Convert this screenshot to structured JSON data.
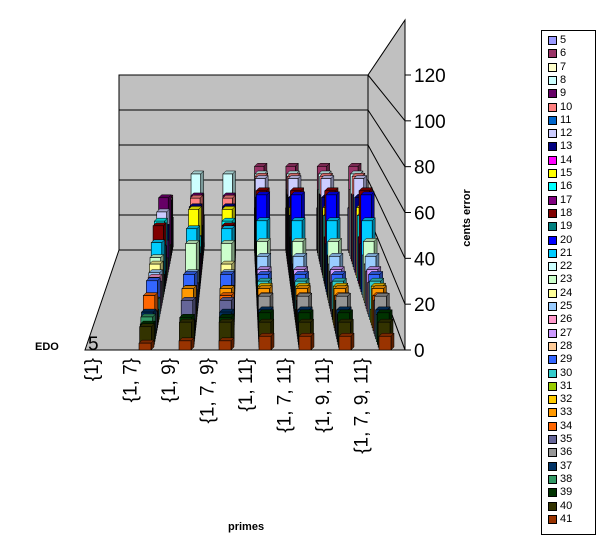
{
  "chart_data": {
    "type": "bar",
    "variant": "3d-column",
    "xlabel": "primes",
    "ylabel": "cents error",
    "depth_label": "EDO",
    "depth_tick": "5",
    "ylim": [
      0,
      120
    ],
    "yticks": [
      "0",
      "20",
      "40",
      "60",
      "80",
      "100",
      "120"
    ],
    "grid": "horizontal",
    "legend_position": "right",
    "categories": [
      "{1}",
      "{1, 7}",
      "{1, 9}",
      "{1, 7, 9}",
      "{1, 11}",
      "{1, 7, 11}",
      "{1, 9, 11}",
      "{1, 7, 9, 11}"
    ],
    "series": [
      {
        "name": "5",
        "color": "#9999ff",
        "values": [
          0,
          17,
          18,
          18,
          24,
          24,
          24,
          24
        ]
      },
      {
        "name": "6",
        "color": "#993366",
        "values": [
          0,
          31,
          4,
          31,
          49,
          49,
          49,
          49
        ]
      },
      {
        "name": "7",
        "color": "#ffffcc",
        "values": [
          0,
          31,
          33,
          33,
          37,
          37,
          37,
          37
        ]
      },
      {
        "name": "8",
        "color": "#ccffff",
        "values": [
          0,
          31,
          47,
          47,
          47,
          47,
          47,
          47
        ]
      },
      {
        "name": "9",
        "color": "#660066",
        "values": [
          0,
          35,
          36,
          36,
          37,
          37,
          37,
          37
        ]
      },
      {
        "name": "10",
        "color": "#ff8080",
        "values": [
          0,
          9,
          36,
          36,
          48,
          48,
          48,
          48
        ]
      },
      {
        "name": "11",
        "color": "#0066cc",
        "values": [
          0,
          10,
          21,
          21,
          39,
          39,
          39,
          39
        ]
      },
      {
        "name": "12",
        "color": "#ccccff",
        "values": [
          0,
          31,
          4,
          31,
          49,
          49,
          49,
          49
        ]
      },
      {
        "name": "13",
        "color": "#000080",
        "values": [
          0,
          24,
          35,
          35,
          40,
          40,
          40,
          40
        ]
      },
      {
        "name": "14",
        "color": "#ff00ff",
        "values": [
          0,
          17,
          32,
          32,
          34,
          34,
          34,
          34
        ]
      },
      {
        "name": "15",
        "color": "#ffff00",
        "values": [
          0,
          9,
          36,
          36,
          37,
          37,
          37,
          37
        ]
      },
      {
        "name": "16",
        "color": "#00ffff",
        "values": [
          0,
          31,
          22,
          31,
          34,
          34,
          34,
          34
        ]
      },
      {
        "name": "17",
        "color": "#800080",
        "values": [
          0,
          18,
          14,
          18,
          24,
          24,
          24,
          24
        ]
      },
      {
        "name": "18",
        "color": "#800000",
        "values": [
          0,
          31,
          4,
          31,
          49,
          49,
          49,
          49
        ]
      },
      {
        "name": "19",
        "color": "#008080",
        "values": [
          0,
          21,
          20,
          21,
          23,
          23,
          23,
          23
        ]
      },
      {
        "name": "20",
        "color": "#0000ff",
        "values": [
          0,
          9,
          20,
          20,
          49,
          49,
          49,
          49
        ]
      },
      {
        "name": "21",
        "color": "#00ccff",
        "values": [
          0,
          26,
          33,
          33,
          37,
          37,
          37,
          37
        ]
      },
      {
        "name": "22",
        "color": "#ccffff",
        "values": [
          0,
          10,
          21,
          21,
          21,
          21,
          21,
          21
        ]
      },
      {
        "name": "23",
        "color": "#ccffcc",
        "values": [
          0,
          21,
          28,
          28,
          29,
          29,
          29,
          29
        ]
      },
      {
        "name": "24",
        "color": "#ffff99",
        "values": [
          0,
          19,
          4,
          19,
          19,
          19,
          19,
          19
        ]
      },
      {
        "name": "25",
        "color": "#99ccff",
        "values": [
          0,
          16,
          16,
          16,
          24,
          24,
          24,
          24
        ]
      },
      {
        "name": "26",
        "color": "#ff99cc",
        "values": [
          0,
          15,
          11,
          15,
          18,
          18,
          18,
          18
        ]
      },
      {
        "name": "27",
        "color": "#cc99ff",
        "values": [
          0,
          13,
          9,
          13,
          20,
          20,
          20,
          20
        ]
      },
      {
        "name": "28",
        "color": "#ffcc99",
        "values": [
          0,
          14,
          10,
          14,
          15,
          15,
          15,
          15
        ]
      },
      {
        "name": "29",
        "color": "#3366ff",
        "values": [
          0,
          17,
          20,
          20,
          20,
          20,
          20,
          20
        ]
      },
      {
        "name": "30",
        "color": "#33cccc",
        "values": [
          0,
          9,
          4,
          9,
          18,
          18,
          18,
          18
        ]
      },
      {
        "name": "31",
        "color": "#99cc00",
        "values": [
          0,
          1,
          6,
          6,
          6,
          6,
          6,
          6
        ]
      },
      {
        "name": "32",
        "color": "#ffcc00",
        "values": [
          0,
          6,
          17,
          17,
          18,
          18,
          18,
          18
        ]
      },
      {
        "name": "33",
        "color": "#ff9900",
        "values": [
          0,
          13,
          18,
          18,
          18,
          18,
          18,
          18
        ]
      },
      {
        "name": "34",
        "color": "#ff6600",
        "values": [
          0,
          16,
          11,
          16,
          16,
          16,
          16,
          16
        ]
      },
      {
        "name": "35",
        "color": "#666699",
        "values": [
          0,
          9,
          15,
          15,
          15,
          15,
          15,
          15
        ]
      },
      {
        "name": "36",
        "color": "#969696",
        "values": [
          0,
          2,
          4,
          4,
          18,
          18,
          18,
          18
        ]
      },
      {
        "name": "37",
        "color": "#003366",
        "values": [
          0,
          12,
          7,
          12,
          13,
          13,
          13,
          13
        ]
      },
      {
        "name": "38",
        "color": "#339966",
        "values": [
          0,
          11,
          9,
          11,
          12,
          12,
          12,
          12
        ]
      },
      {
        "name": "39",
        "color": "#003300",
        "values": [
          0,
          9,
          12,
          12,
          14,
          14,
          14,
          14
        ]
      },
      {
        "name": "40",
        "color": "#333300",
        "values": [
          0,
          9,
          11,
          11,
          11,
          11,
          11,
          11
        ]
      },
      {
        "name": "41",
        "color": "#993300",
        "values": [
          0,
          3,
          4,
          4,
          6,
          6,
          6,
          6
        ]
      }
    ]
  }
}
